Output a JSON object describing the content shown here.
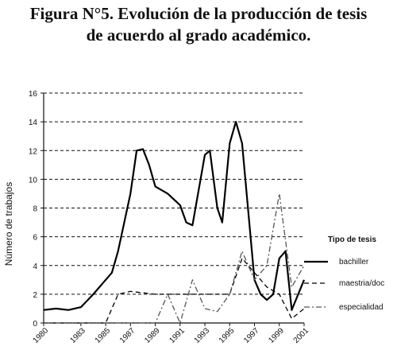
{
  "title_line1": "Figura N°5. Evolución de la producción de tesis",
  "title_line2": "de acuerdo al grado académico.",
  "chart_data": {
    "type": "line",
    "ylabel": "Número de trabajos",
    "ylim": [
      0,
      16
    ],
    "yticks": [
      0,
      2,
      4,
      6,
      8,
      10,
      12,
      14,
      16
    ],
    "xlim": [
      1980,
      2001
    ],
    "xticks": [
      1980,
      1983,
      1985,
      1987,
      1989,
      1991,
      1993,
      1995,
      1997,
      1999,
      2001
    ],
    "grid": "horizontal dashed",
    "legend_title": "Tipo de tesis",
    "legend_position": "right",
    "series": [
      {
        "name": "bachiller",
        "style": "solid",
        "color": "#000000",
        "x": [
          1980,
          1981,
          1982,
          1983,
          1984,
          1985,
          1985.5,
          1986,
          1987,
          1987.5,
          1988,
          1988.5,
          1989,
          1990,
          1991,
          1991.5,
          1992,
          1993,
          1993.4,
          1994,
          1994.4,
          1995,
          1995.5,
          1996,
          1997,
          1997.5,
          1998,
          1998.5,
          1999,
          1999.5,
          2000,
          2001
        ],
        "values": [
          0.9,
          1.0,
          0.9,
          1.1,
          2.0,
          3.0,
          3.5,
          5.0,
          9.0,
          12.0,
          12.1,
          11.0,
          9.5,
          9.0,
          8.2,
          7.0,
          6.8,
          11.7,
          12.0,
          8.0,
          7.0,
          12.5,
          14.0,
          12.5,
          3.0,
          2.0,
          1.6,
          2.0,
          4.5,
          5.0,
          0.9,
          3.0
        ]
      },
      {
        "name": "maestria/doc",
        "style": "dashed",
        "color": "#000000",
        "x": [
          1980,
          1985,
          1986,
          1987,
          1988,
          1989,
          1990,
          1991,
          1992,
          1993,
          1994,
          1995,
          1996,
          1997,
          1998,
          1999,
          2000,
          2001
        ],
        "values": [
          0,
          0,
          2.0,
          2.2,
          2.1,
          2.0,
          2.0,
          2.0,
          2.0,
          2.0,
          2.0,
          2.0,
          4.5,
          3.5,
          2.5,
          2.0,
          0.3,
          1.0
        ]
      },
      {
        "name": "especialidad",
        "style": "dash-dot",
        "color": "#555555",
        "x": [
          1980,
          1987,
          1988,
          1989,
          1990,
          1991,
          1992,
          1993,
          1994,
          1995,
          1996,
          1997,
          1998,
          1999,
          2000,
          2001
        ],
        "values": [
          0,
          0,
          0,
          0,
          2.0,
          0,
          3.0,
          1.0,
          0.8,
          2.0,
          5.0,
          3.0,
          4.0,
          9.0,
          2.5,
          4.0
        ]
      }
    ]
  }
}
